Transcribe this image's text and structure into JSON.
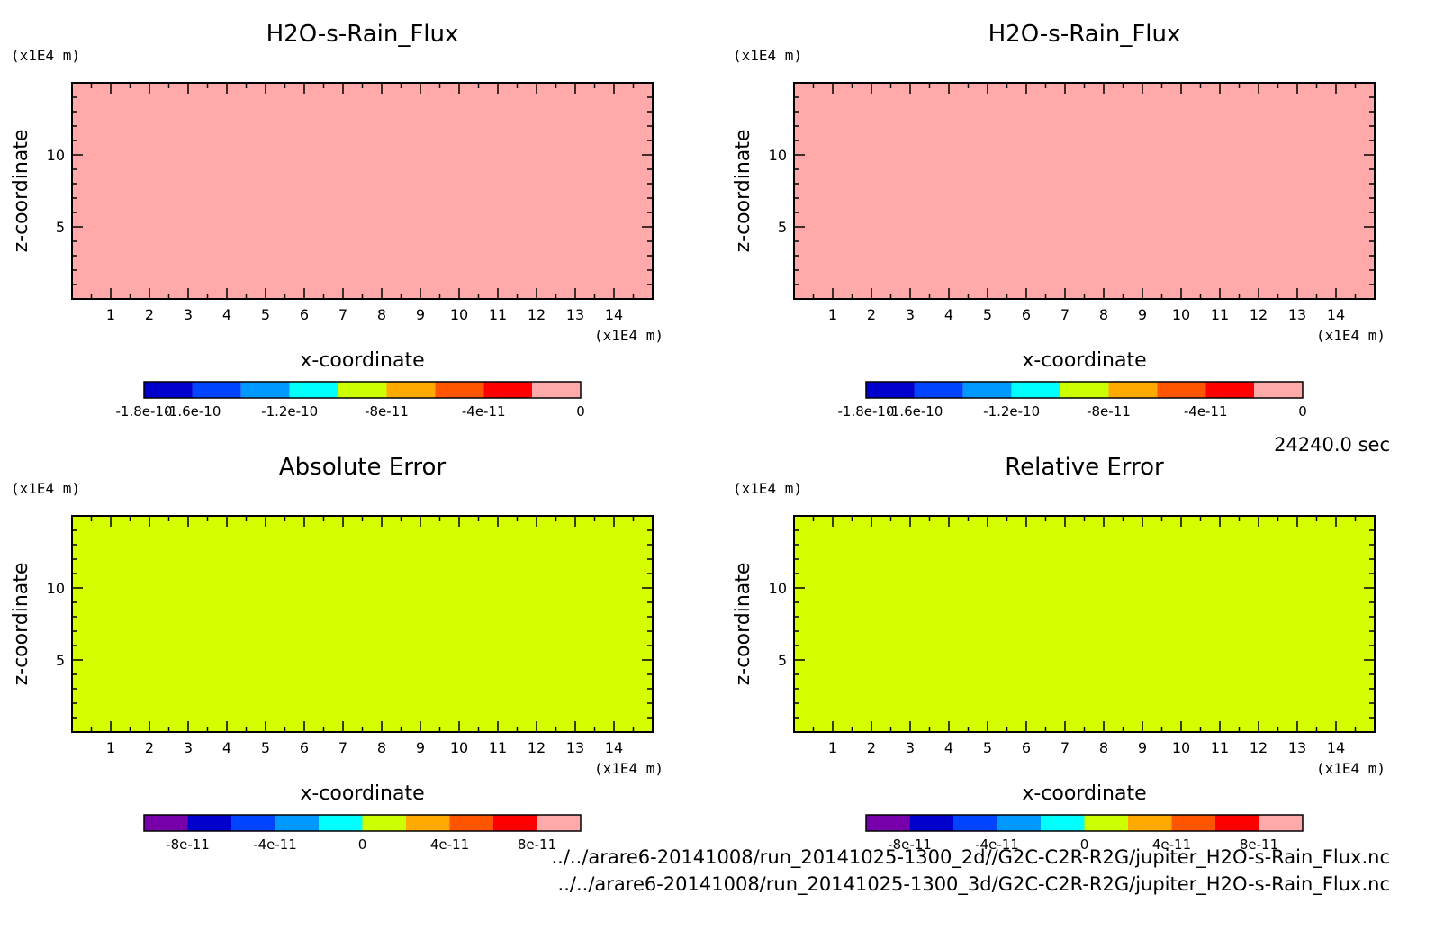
{
  "time_label": "24240.0 sec",
  "footer": {
    "file_2d": "../../arare6-20141008/run_20141025-1300_2d//G2C-C2R-R2G/jupiter_H2O-s-Rain_Flux.nc",
    "file_3d": "../../arare6-20141008/run_20141025-1300_3d/G2C-C2R-R2G/jupiter_H2O-s-Rain_Flux.nc"
  },
  "chart_data": [
    {
      "type": "heatmap",
      "title": "H2O-s-Rain_Flux",
      "xlabel": "x-coordinate",
      "ylabel": "z-coordinate",
      "x_unit": "(x1E4 m)",
      "y_unit": "(x1E4 m)",
      "xlim": [
        0,
        15
      ],
      "ylim": [
        0,
        15
      ],
      "x_ticks": [
        "1",
        "2",
        "3",
        "4",
        "5",
        "6",
        "7",
        "8",
        "9",
        "10",
        "11",
        "12",
        "13",
        "14"
      ],
      "y_ticks": [
        "5",
        "10"
      ],
      "field_color": "#ffa9aa",
      "colorbar": {
        "colors": [
          "#0000cc",
          "#0044ff",
          "#0099ff",
          "#00ffff",
          "#ccff00",
          "#ffaa00",
          "#ff5500",
          "#ff0000",
          "#ffaaaa"
        ],
        "range": [
          -1.8e-10,
          0
        ],
        "labels": [
          {
            "text": "-1.8e-10",
            "value": -1.8e-10
          },
          {
            "text": "-1.6e-10",
            "value": -1.6e-10
          },
          {
            "text": "-1.2e-10",
            "value": -1.2e-10
          },
          {
            "text": "-8e-11",
            "value": -8e-11
          },
          {
            "text": "-4e-11",
            "value": -4e-11
          },
          {
            "text": "0",
            "value": 0
          }
        ]
      }
    },
    {
      "type": "heatmap",
      "title": "H2O-s-Rain_Flux",
      "xlabel": "x-coordinate",
      "ylabel": "z-coordinate",
      "x_unit": "(x1E4 m)",
      "y_unit": "(x1E4 m)",
      "xlim": [
        0,
        15
      ],
      "ylim": [
        0,
        15
      ],
      "x_ticks": [
        "1",
        "2",
        "3",
        "4",
        "5",
        "6",
        "7",
        "8",
        "9",
        "10",
        "11",
        "12",
        "13",
        "14"
      ],
      "y_ticks": [
        "5",
        "10"
      ],
      "field_color": "#ffa9aa",
      "colorbar": {
        "colors": [
          "#0000cc",
          "#0044ff",
          "#0099ff",
          "#00ffff",
          "#ccff00",
          "#ffaa00",
          "#ff5500",
          "#ff0000",
          "#ffaaaa"
        ],
        "range": [
          -1.8e-10,
          0
        ],
        "labels": [
          {
            "text": "-1.8e-10",
            "value": -1.8e-10
          },
          {
            "text": "-1.6e-10",
            "value": -1.6e-10
          },
          {
            "text": "-1.2e-10",
            "value": -1.2e-10
          },
          {
            "text": "-8e-11",
            "value": -8e-11
          },
          {
            "text": "-4e-11",
            "value": -4e-11
          },
          {
            "text": "0",
            "value": 0
          }
        ]
      }
    },
    {
      "type": "heatmap",
      "title": "Absolute Error",
      "xlabel": "x-coordinate",
      "ylabel": "z-coordinate",
      "x_unit": "(x1E4 m)",
      "y_unit": "(x1E4 m)",
      "xlim": [
        0,
        15
      ],
      "ylim": [
        0,
        15
      ],
      "x_ticks": [
        "1",
        "2",
        "3",
        "4",
        "5",
        "6",
        "7",
        "8",
        "9",
        "10",
        "11",
        "12",
        "13",
        "14"
      ],
      "y_ticks": [
        "5",
        "10"
      ],
      "field_color": "#d5ff00",
      "colorbar": {
        "colors": [
          "#7700aa",
          "#0000cc",
          "#0044ff",
          "#0099ff",
          "#00ffff",
          "#ccff00",
          "#ffaa00",
          "#ff5500",
          "#ff0000",
          "#ffaaaa"
        ],
        "range": [
          -1e-10,
          1e-10
        ],
        "labels": [
          {
            "text": "-8e-11",
            "value": -8e-11
          },
          {
            "text": "-4e-11",
            "value": -4e-11
          },
          {
            "text": "0",
            "value": 0
          },
          {
            "text": "4e-11",
            "value": 4e-11
          },
          {
            "text": "8e-11",
            "value": 8e-11
          }
        ]
      }
    },
    {
      "type": "heatmap",
      "title": "Relative Error",
      "xlabel": "x-coordinate",
      "ylabel": "z-coordinate",
      "x_unit": "(x1E4 m)",
      "y_unit": "(x1E4 m)",
      "xlim": [
        0,
        15
      ],
      "ylim": [
        0,
        15
      ],
      "x_ticks": [
        "1",
        "2",
        "3",
        "4",
        "5",
        "6",
        "7",
        "8",
        "9",
        "10",
        "11",
        "12",
        "13",
        "14"
      ],
      "y_ticks": [
        "5",
        "10"
      ],
      "field_color": "#d5ff00",
      "colorbar": {
        "colors": [
          "#7700aa",
          "#0000cc",
          "#0044ff",
          "#0099ff",
          "#00ffff",
          "#ccff00",
          "#ffaa00",
          "#ff5500",
          "#ff0000",
          "#ffaaaa"
        ],
        "range": [
          -1e-10,
          1e-10
        ],
        "labels": [
          {
            "text": "-8e-11",
            "value": -8e-11
          },
          {
            "text": "-4e-11",
            "value": -4e-11
          },
          {
            "text": "0",
            "value": 0
          },
          {
            "text": "4e-11",
            "value": 4e-11
          },
          {
            "text": "8e-11",
            "value": 8e-11
          }
        ]
      }
    }
  ]
}
